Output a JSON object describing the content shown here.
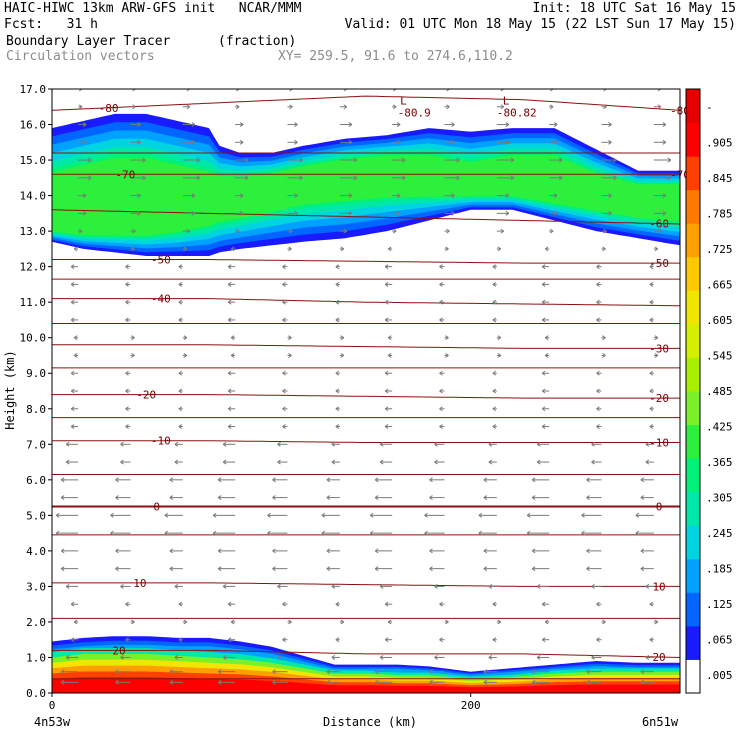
{
  "header": {
    "line1_left": "HAIC-HIWC 13km ARW-GFS init   NCAR/MMM",
    "line1_right": "Init: 18 UTC Sat 16 May 15",
    "line2_left": "Fcst:   31 h",
    "line2_right": "Valid: 01 UTC Mon 18 May 15 (22 LST Sun 17 May 15)",
    "line3_left": "Boundary Layer Tracer",
    "line3_unit": "(fraction)",
    "line4_left": "Circulation vectors",
    "line4_right": "XY= 259.5, 91.6 to 274.6,110.2"
  },
  "chart_data": {
    "type": "heatmap",
    "xlabel": "Distance (km)",
    "ylabel": "Height (km)",
    "xlim": [
      0,
      300
    ],
    "ylim": [
      0,
      17
    ],
    "x_ticks": [
      {
        "v": 0,
        "label": "0"
      },
      {
        "v": 200,
        "label": "200"
      }
    ],
    "x_end_labels": {
      "left": "4n53w",
      "right": "6n51w"
    },
    "y_ticks": [
      "0.0",
      "1.0",
      "2.0",
      "3.0",
      "4.0",
      "5.0",
      "6.0",
      "7.0",
      "8.0",
      "9.0",
      "10.0",
      "11.0",
      "12.0",
      "13.0",
      "14.0",
      "15.0",
      "16.0",
      "17.0"
    ],
    "colorbar": {
      "labels": [
        ".005",
        ".065",
        ".125",
        ".185",
        ".245",
        ".305",
        ".365",
        ".425",
        ".485",
        ".545",
        ".605",
        ".665",
        ".725",
        ".785",
        ".845",
        ".905",
        "-"
      ],
      "colors": [
        "#ffffff",
        "#1a1aff",
        "#0066ff",
        "#00a2ff",
        "#00d4e0",
        "#00e8a8",
        "#00f07a",
        "#2cf03c",
        "#7af028",
        "#a8f000",
        "#d2f000",
        "#f0e600",
        "#ffc800",
        "#ffa000",
        "#ff7800",
        "#ff4000",
        "#ff0000",
        "#e60000"
      ]
    },
    "tracer_upper_layer": {
      "x": [
        0,
        15,
        30,
        45,
        60,
        75,
        80,
        90,
        105,
        120,
        140,
        160,
        180,
        200,
        220,
        240,
        260,
        280,
        300
      ],
      "base": [
        12.7,
        12.5,
        12.4,
        12.3,
        12.3,
        12.3,
        12.4,
        12.5,
        12.6,
        12.7,
        12.8,
        13.0,
        13.3,
        13.6,
        13.6,
        13.3,
        13.0,
        12.8,
        12.6
      ],
      "top": [
        15.9,
        16.1,
        16.3,
        16.3,
        16.1,
        15.9,
        15.4,
        15.2,
        15.2,
        15.4,
        15.6,
        15.7,
        15.9,
        15.8,
        15.9,
        15.9,
        15.3,
        14.7,
        14.7
      ],
      "core_base": [
        13.0,
        12.9,
        12.9,
        12.9,
        13.0,
        13.2,
        13.3,
        13.4,
        13.6,
        13.8,
        13.9,
        14.0,
        14.0,
        14.0,
        14.0,
        13.8,
        13.6,
        13.4,
        13.3
      ],
      "core_top": [
        14.6,
        14.8,
        15.0,
        15.0,
        14.8,
        14.6,
        14.5,
        14.5,
        14.6,
        14.8,
        15.0,
        15.1,
        15.1,
        14.9,
        15.1,
        15.1,
        14.6,
        14.3,
        14.3
      ]
    },
    "tracer_boundary_layer": {
      "x": [
        0,
        15,
        30,
        45,
        60,
        75,
        90,
        105,
        120,
        135,
        150,
        165,
        180,
        200,
        220,
        240,
        260,
        280,
        300
      ],
      "top": [
        1.45,
        1.55,
        1.6,
        1.6,
        1.55,
        1.55,
        1.45,
        1.3,
        1.05,
        0.8,
        0.8,
        0.8,
        0.75,
        0.6,
        0.7,
        0.8,
        0.9,
        0.85,
        0.85
      ],
      "mid": [
        1.0,
        1.1,
        1.1,
        1.1,
        1.05,
        1.0,
        0.95,
        0.85,
        0.7,
        0.55,
        0.55,
        0.5,
        0.5,
        0.4,
        0.45,
        0.55,
        0.6,
        0.6,
        0.6
      ]
    },
    "isotherms": [
      {
        "label": "20",
        "y": [
          1.2,
          1.2,
          1.1,
          1.1,
          1.0
        ],
        "label_pos": [
          {
            "x": 32
          },
          {
            "x": 290
          }
        ]
      },
      {
        "label": "10",
        "y": [
          3.1,
          3.1,
          3.05,
          3.0,
          3.0
        ],
        "label_pos": [
          {
            "x": 42
          },
          {
            "x": 290
          }
        ]
      },
      {
        "label": "0",
        "y": [
          5.25,
          5.25,
          5.25,
          5.25,
          5.25
        ],
        "label_pos": [
          {
            "x": 50
          },
          {
            "x": 290
          }
        ]
      },
      {
        "label": "-10",
        "y": [
          7.1,
          7.1,
          7.05,
          7.05,
          7.05
        ],
        "label_pos": [
          {
            "x": 52
          },
          {
            "x": 290
          }
        ]
      },
      {
        "label": "-20",
        "y": [
          8.4,
          8.4,
          8.35,
          8.3,
          8.3
        ],
        "label_pos": [
          {
            "x": 45
          },
          {
            "x": 290
          }
        ]
      },
      {
        "label": "-30",
        "y": [
          9.8,
          9.8,
          9.75,
          9.7,
          9.7
        ],
        "label_pos": [
          {
            "x": 290
          }
        ]
      },
      {
        "label": "-40",
        "y": [
          11.1,
          11.1,
          11.0,
          10.95,
          10.9
        ],
        "label_pos": [
          {
            "x": 52
          }
        ]
      },
      {
        "label": "-50",
        "y": [
          12.2,
          12.2,
          12.15,
          12.1,
          12.1
        ],
        "label_pos": [
          {
            "x": 52
          },
          {
            "x": 290
          }
        ]
      },
      {
        "label": "-60",
        "y": [
          13.6,
          13.5,
          13.4,
          13.3,
          13.2
        ],
        "label_pos": [
          {
            "x": 290
          }
        ]
      },
      {
        "label": "-70",
        "y": [
          14.6,
          14.6,
          14.6,
          14.6,
          14.6
        ],
        "label_pos": [
          {
            "x": 35
          },
          {
            "x": 300
          }
        ]
      },
      {
        "label": "-80",
        "y": [
          16.4,
          16.6,
          16.8,
          16.7,
          16.4
        ],
        "label_pos": [
          {
            "x": 27
          },
          {
            "x": 300
          }
        ]
      }
    ],
    "extra_contour_levels_y": [
      0.4,
      2.1,
      4.45,
      6.15,
      7.75,
      9.15,
      10.4,
      11.65,
      15.2
    ],
    "contour_x_nodes": [
      0,
      75,
      150,
      225,
      300
    ],
    "minima": [
      {
        "x": 173,
        "y": 16.4,
        "label": "-80.9"
      },
      {
        "x": 222,
        "y": 16.4,
        "label": "-80.82"
      }
    ],
    "wind": {
      "columns": 12,
      "rows": [
        0.3,
        0.6,
        1.0,
        1.5,
        2.0,
        2.5,
        3.0,
        3.5,
        4.0,
        4.5,
        5.0,
        5.5,
        6.0,
        6.5,
        7.0,
        7.5,
        8.0,
        8.5,
        9.0,
        9.5,
        10.0,
        10.5,
        11.0,
        11.5,
        12.0,
        12.5,
        13.0,
        13.5,
        14.0,
        14.5,
        15.0,
        15.5,
        16.0,
        16.5,
        17.0
      ],
      "u_profile": [
        -3,
        -3,
        -2,
        -1,
        0,
        -1,
        -2,
        -3,
        -3,
        -4,
        -4,
        -3,
        -3,
        -2,
        -2,
        -1,
        -1,
        -1,
        -1,
        0,
        0,
        -1,
        -1,
        -1,
        -1,
        0,
        1,
        2,
        2,
        3,
        3,
        2,
        2,
        1,
        1
      ]
    }
  }
}
